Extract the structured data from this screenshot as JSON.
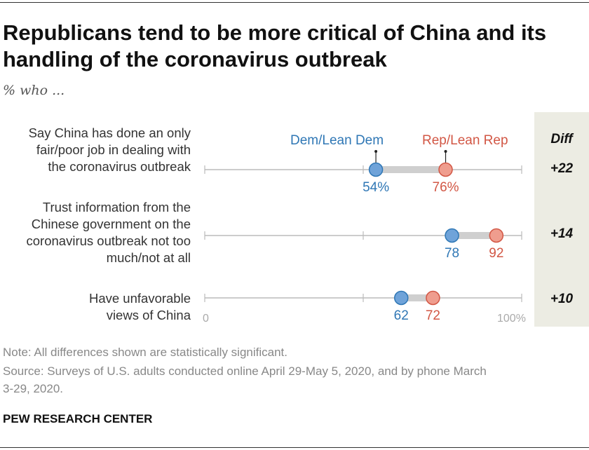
{
  "title": "Republicans tend to be more critical of China and its handling of the coronavirus outbreak",
  "subtitle": "% who ...",
  "diff_header": "Diff",
  "legend": {
    "dem": "Dem/Lean Dem",
    "rep": "Rep/Lean Rep"
  },
  "axis": {
    "min_label": "0",
    "max_label": "100%"
  },
  "rows": [
    {
      "label_lines": [
        "Say China has done an only",
        "fair/poor job in dealing with",
        "the coronavirus outbreak"
      ],
      "diff": "+22",
      "dem_label": "54%",
      "rep_label": "76%"
    },
    {
      "label_lines": [
        "Trust information from the",
        "Chinese government on the",
        "coronavirus outbreak not too",
        "much/not at all"
      ],
      "diff": "+14",
      "dem_label": "78",
      "rep_label": "92"
    },
    {
      "label_lines": [
        "Have unfavorable",
        "views of China"
      ],
      "diff": "+10",
      "dem_label": "62",
      "rep_label": "72"
    }
  ],
  "note": "Note: All differences shown are statistically significant.",
  "source_lines": [
    "Source: Surveys of U.S. adults conducted online April 29-May 5, 2020, and by phone March",
    "3-29, 2020."
  ],
  "brand": "PEW RESEARCH CENTER",
  "colors": {
    "dem": "#6fa3d9",
    "dem_text": "#2f77b5",
    "rep": "#ef9d8e",
    "rep_text": "#d25745",
    "axis": "#bbbbbb",
    "connector": "#cfcfcf"
  },
  "chart_data": {
    "type": "dot-plot",
    "xlim": [
      0,
      100
    ],
    "categories": [
      "Say China has done an only fair/poor job in dealing with the coronavirus outbreak",
      "Trust information from the Chinese government on the coronavirus outbreak not too much/not at all",
      "Have unfavorable views of China"
    ],
    "series": [
      {
        "name": "Dem/Lean Dem",
        "values": [
          54,
          78,
          62
        ]
      },
      {
        "name": "Rep/Lean Rep",
        "values": [
          76,
          92,
          72
        ]
      }
    ],
    "diff": [
      "+22",
      "+14",
      "+10"
    ]
  }
}
